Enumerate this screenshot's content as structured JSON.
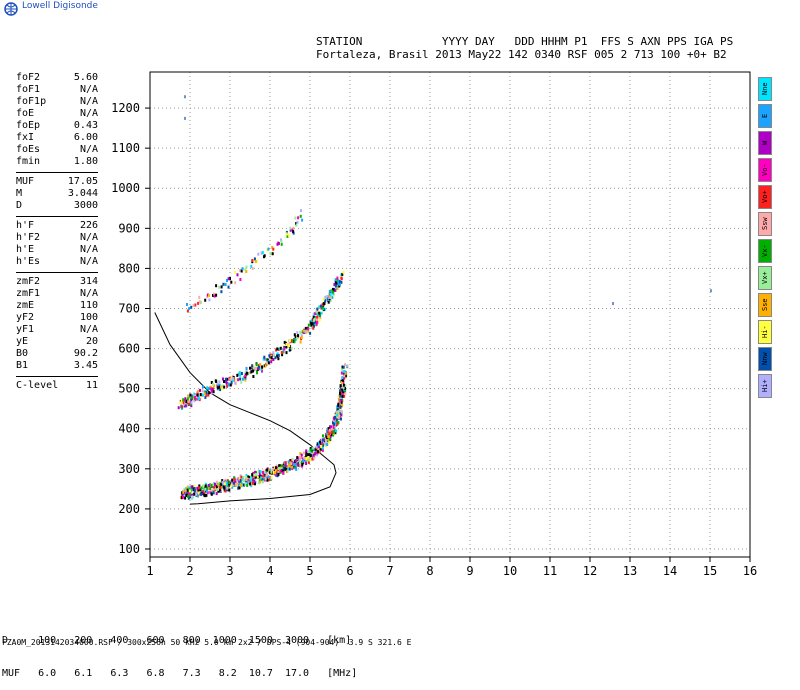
{
  "brand": {
    "name": "Lowell Digisonde"
  },
  "header": {
    "line1": "STATION            YYYY DAY   DDD HHHM P1  FFS S AXN PPS IGA PS",
    "line2": "Fortaleza, Brasil 2013 May22 142 0340 RSF 005 2 713 100 +0+ B2"
  },
  "params": [
    [
      {
        "k": "foF2",
        "v": "5.60"
      },
      {
        "k": "foF1",
        "v": "N/A"
      },
      {
        "k": "foF1p",
        "v": "N/A"
      },
      {
        "k": "foE",
        "v": "N/A"
      },
      {
        "k": "foEp",
        "v": "0.43"
      },
      {
        "k": "fxI",
        "v": "6.00"
      },
      {
        "k": "foEs",
        "v": "N/A"
      },
      {
        "k": "fmin",
        "v": "1.80"
      }
    ],
    [
      {
        "k": "MUF",
        "v": "17.05"
      },
      {
        "k": "M",
        "v": "3.044"
      },
      {
        "k": "D",
        "v": "3000"
      }
    ],
    [
      {
        "k": "h'F",
        "v": "226"
      },
      {
        "k": "h'F2",
        "v": "N/A"
      },
      {
        "k": "h'E",
        "v": "N/A"
      },
      {
        "k": "h'Es",
        "v": "N/A"
      }
    ],
    [
      {
        "k": "zmF2",
        "v": "314"
      },
      {
        "k": "zmF1",
        "v": "N/A"
      },
      {
        "k": "zmE",
        "v": "110"
      },
      {
        "k": "yF2",
        "v": "100"
      },
      {
        "k": "yF1",
        "v": "N/A"
      },
      {
        "k": "yE",
        "v": "20"
      },
      {
        "k": "B0",
        "v": "90.2"
      },
      {
        "k": "B1",
        "v": "3.45"
      }
    ],
    [
      {
        "k": "C-level",
        "v": "11"
      }
    ]
  ],
  "legend": [
    {
      "label": "Nne",
      "color": "#00e5ff"
    },
    {
      "label": "E",
      "color": "#1aa3ff"
    },
    {
      "label": "W",
      "color": "#b000c8"
    },
    {
      "label": "Vo-",
      "color": "#ff00c0"
    },
    {
      "label": "Vo+",
      "color": "#ff2020"
    },
    {
      "label": "Ssw",
      "color": "#ffaaaa"
    },
    {
      "label": "Vx-",
      "color": "#00b000"
    },
    {
      "label": "Vx+",
      "color": "#99ee99"
    },
    {
      "label": "Sse",
      "color": "#ffb000"
    },
    {
      "label": "Hi-",
      "color": "#ffff40"
    },
    {
      "label": "Nnw",
      "color": "#0050b0"
    },
    {
      "label": "Hi+",
      "color": "#b0b0ff"
    }
  ],
  "muf_table": {
    "row1": "D     100   200   400   600   800  1000  1500  3000   [km]",
    "row2": "MUF   6.0   6.1   6.3   6.8   7.3   8.2  10.7  17.0   [MHz]"
  },
  "footer": "FZA0M_2013142034000.RSF / 300x256h 50 kHz 5.0 km 2x2 / DPS-4 (904-904)  3.9 S 321.6 E",
  "chart_data": {
    "type": "scatter",
    "xlim": [
      1,
      16
    ],
    "ylim": [
      80,
      1290
    ],
    "x_ticks": [
      1,
      2,
      3,
      4,
      5,
      6,
      7,
      8,
      9,
      10,
      11,
      12,
      13,
      14,
      15,
      16
    ],
    "y_ticks": [
      100,
      200,
      300,
      400,
      500,
      600,
      700,
      800,
      900,
      1000,
      1100,
      1200
    ],
    "grid": "dotted",
    "profile_curve": [
      [
        1.12,
        690
      ],
      [
        1.5,
        610
      ],
      [
        2,
        540
      ],
      [
        2.5,
        490
      ],
      [
        3,
        460
      ],
      [
        3.5,
        440
      ],
      [
        4,
        420
      ],
      [
        4.5,
        395
      ],
      [
        5,
        360
      ],
      [
        5.3,
        335
      ],
      [
        5.6,
        310
      ],
      [
        5.65,
        290
      ],
      [
        5.5,
        255
      ],
      [
        5,
        236
      ],
      [
        4,
        226
      ],
      [
        3,
        220
      ],
      [
        2.2,
        213
      ],
      [
        2,
        212
      ]
    ],
    "traces": [
      {
        "name": "o1",
        "points": [
          [
            1.8,
            242
          ],
          [
            2,
            247
          ],
          [
            2.5,
            255
          ],
          [
            3,
            266
          ],
          [
            3.5,
            280
          ],
          [
            4,
            295
          ],
          [
            4.5,
            315
          ],
          [
            5,
            340
          ],
          [
            5.3,
            365
          ],
          [
            5.55,
            400
          ],
          [
            5.7,
            450
          ],
          [
            5.8,
            500
          ],
          [
            5.85,
            560
          ]
        ]
      },
      {
        "name": "x1",
        "points": [
          [
            1.9,
            240
          ],
          [
            2.5,
            250
          ],
          [
            3,
            262
          ],
          [
            3.5,
            275
          ],
          [
            4,
            290
          ],
          [
            4.5,
            310
          ],
          [
            5,
            335
          ],
          [
            5.4,
            380
          ],
          [
            5.7,
            430
          ],
          [
            5.8,
            520
          ]
        ]
      },
      {
        "name": "o2",
        "points": [
          [
            1.75,
            462
          ],
          [
            2,
            475
          ],
          [
            2.5,
            505
          ],
          [
            3,
            522
          ],
          [
            3.5,
            545
          ],
          [
            4,
            578
          ],
          [
            4.5,
            615
          ],
          [
            5,
            660
          ],
          [
            5.2,
            690
          ],
          [
            5.5,
            740
          ],
          [
            5.8,
            790
          ]
        ]
      },
      {
        "name": "o3",
        "points": [
          [
            1.9,
            700
          ],
          [
            2.5,
            735
          ],
          [
            3,
            775
          ],
          [
            3.5,
            810
          ],
          [
            4,
            850
          ],
          [
            4.5,
            890
          ],
          [
            4.8,
            940
          ]
        ]
      }
    ],
    "isolated_points": [
      [
        1.85,
        1232
      ],
      [
        1.85,
        1178
      ],
      [
        12.55,
        716
      ],
      [
        15,
        748
      ]
    ]
  }
}
